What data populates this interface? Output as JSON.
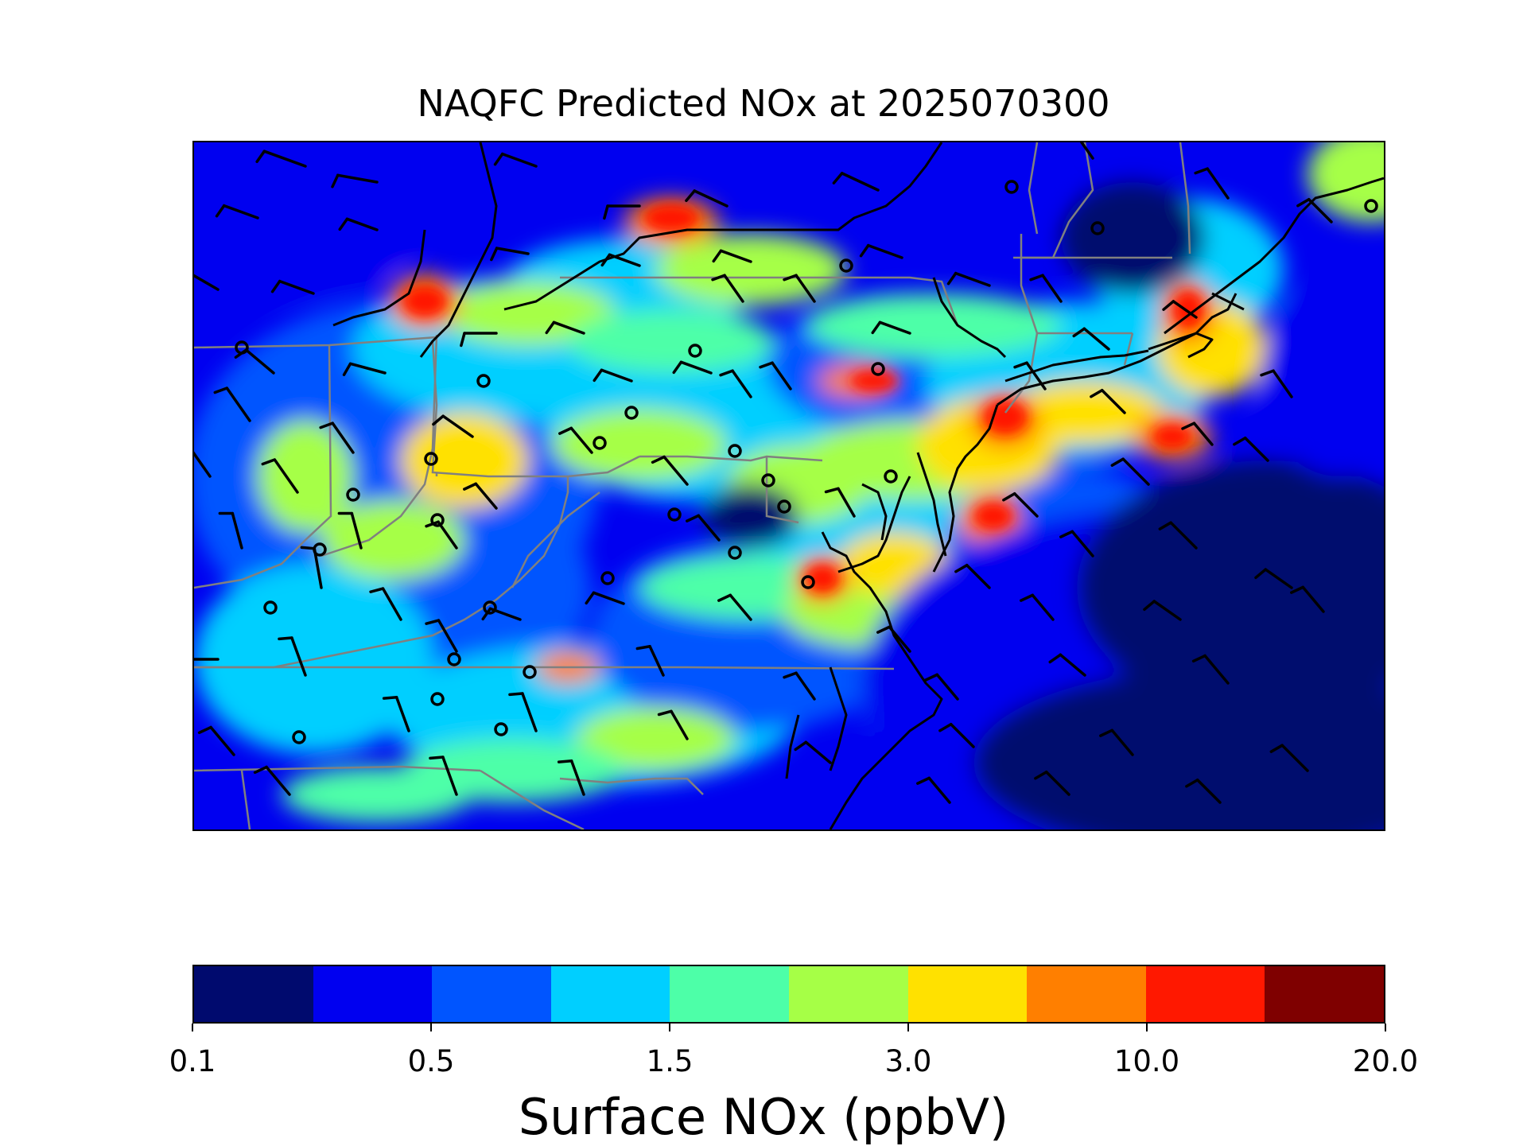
{
  "title": "NAQFC Predicted NOx at 2025070300",
  "colorbar": {
    "label": "Surface NOx (ppbV)",
    "colors": [
      "#000a6e",
      "#0000f0",
      "#0055ff",
      "#00cfff",
      "#4dffa8",
      "#a6ff46",
      "#ffe100",
      "#ff7f00",
      "#ff1800",
      "#7f0000"
    ],
    "ticks": [
      "0.1",
      "0.5",
      "1.5",
      "3.0",
      "10.0",
      "20.0"
    ]
  },
  "legend": {
    "wind_barbs": "black barbs",
    "calm_stations": "black circles",
    "state_borders": "#808080",
    "coastline": "#000000"
  }
}
